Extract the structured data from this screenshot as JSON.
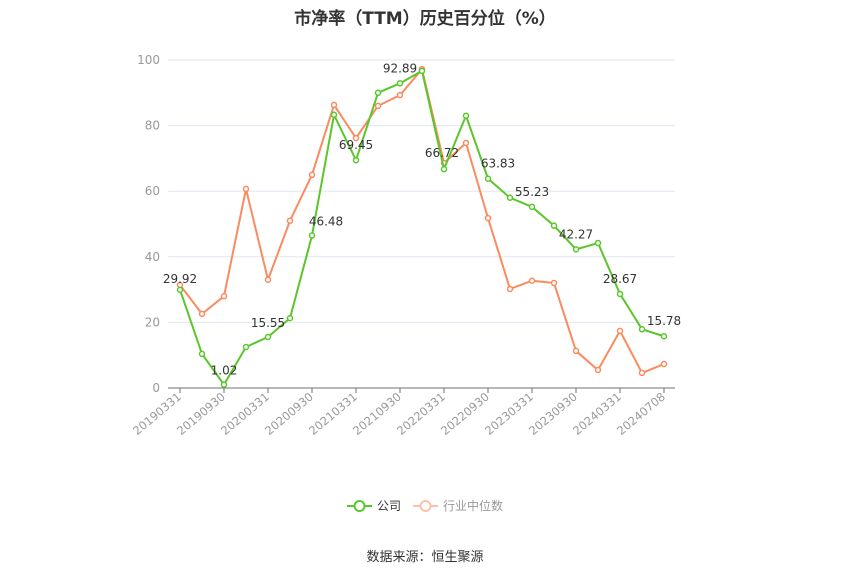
{
  "title": "市净率（TTM）历史百分位（%）",
  "legend": {
    "company_label": "公司",
    "industry_label": "行业中位数"
  },
  "source": "数据来源：恒生聚源",
  "colors": {
    "company": "#5ac62b",
    "industry": "#fa8b5f",
    "grid": "#e0e6f1",
    "axis": "#6e7079",
    "axis_label": "#999999"
  },
  "chart_data": {
    "type": "line",
    "title": "市净率（TTM）历史百分位（%）",
    "xlabel": "",
    "ylabel": "",
    "ylim": [
      0,
      100
    ],
    "yticks": [
      0,
      20,
      40,
      60,
      80,
      100
    ],
    "grid": true,
    "legend_position": "bottom",
    "x_tick_labels": [
      "20190331",
      "20190930",
      "20200331",
      "20200930",
      "20210331",
      "20210930",
      "20220331",
      "20220930",
      "20230331",
      "20230930",
      "20240331",
      "20240708"
    ],
    "x": [
      "20190331",
      "20190630",
      "20190930",
      "20191231",
      "20200331",
      "20200630",
      "20200930",
      "20201231",
      "20210331",
      "20210630",
      "20210930",
      "20211231",
      "20220331",
      "20220630",
      "20220930",
      "20221231",
      "20230331",
      "20230630",
      "20230930",
      "20231231",
      "20240331",
      "20240630",
      "20240708"
    ],
    "series": [
      {
        "name": "公司",
        "values": [
          29.92,
          10.4,
          1.02,
          12.5,
          15.55,
          21.3,
          46.48,
          83.3,
          69.45,
          90.0,
          92.89,
          96.7,
          66.72,
          83.0,
          63.83,
          58.0,
          55.23,
          49.5,
          42.27,
          44.2,
          28.67,
          17.9,
          15.78
        ],
        "labeled_points": {
          "0": "29.92",
          "2": "1.02",
          "4": "15.55",
          "6": "46.48",
          "8": "69.45",
          "10": "92.89",
          "12": "66.72",
          "14": "63.83",
          "16": "55.23",
          "18": "42.27",
          "20": "28.67",
          "22": "15.78"
        }
      },
      {
        "name": "行业中位数",
        "values": [
          31.4,
          22.6,
          28.0,
          60.7,
          33.0,
          51.0,
          65.0,
          86.3,
          76.2,
          86.0,
          89.3,
          97.2,
          68.6,
          74.7,
          51.8,
          30.2,
          32.7,
          32.0,
          11.3,
          5.5,
          17.4,
          4.6,
          7.3
        ]
      }
    ]
  }
}
